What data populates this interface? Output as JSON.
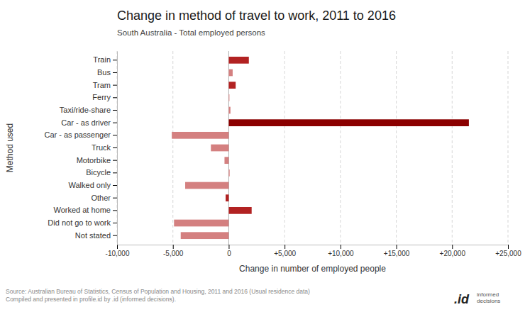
{
  "chart_data": {
    "type": "bar",
    "orientation": "horizontal",
    "title": "Change in method of travel to work, 2011 to 2016",
    "subtitle": "South Australia - Total employed persons",
    "xlabel": "Change in number of employed people",
    "ylabel": "Method used",
    "categories": [
      "Train",
      "Bus",
      "Tram",
      "Ferry",
      "Taxi/ride-share",
      "Car - as driver",
      "Car - as passenger",
      "Truck",
      "Motorbike",
      "Bicycle",
      "Walked only",
      "Other",
      "Worked at home",
      "Did not go to work",
      "Not stated"
    ],
    "values": [
      1800,
      350,
      620,
      60,
      150,
      21500,
      -5100,
      -1600,
      -380,
      80,
      -3900,
      -280,
      2050,
      -4900,
      -4300
    ],
    "colors": [
      "#b22222",
      "#d48080",
      "#b22222",
      "#d48080",
      "#d48080",
      "#8b0000",
      "#d48080",
      "#d48080",
      "#d48080",
      "#d48080",
      "#d48080",
      "#b22222",
      "#b22222",
      "#d48080",
      "#d48080"
    ],
    "xlim": [
      -10000,
      25000
    ],
    "xticks": [
      {
        "value": -10000,
        "label": "-10,000"
      },
      {
        "value": -5000,
        "label": "-5,000"
      },
      0,
      {
        "value": 5000,
        "label": "+5,000"
      },
      {
        "value": 10000,
        "label": "+10,000"
      },
      {
        "value": 15000,
        "label": "+15,000"
      },
      {
        "value": 20000,
        "label": "+20,000"
      },
      {
        "value": 25000,
        "label": "+25,000"
      }
    ],
    "grid": true,
    "annotations": [
      "Source: Australian Bureau of Statistics, Census of Population and Housing, 2011 and 2016 (Usual residence data)\nCompiled and presented in profile.id by .id (informed decisions).",
      ".id",
      "informed\ndecisions"
    ]
  }
}
